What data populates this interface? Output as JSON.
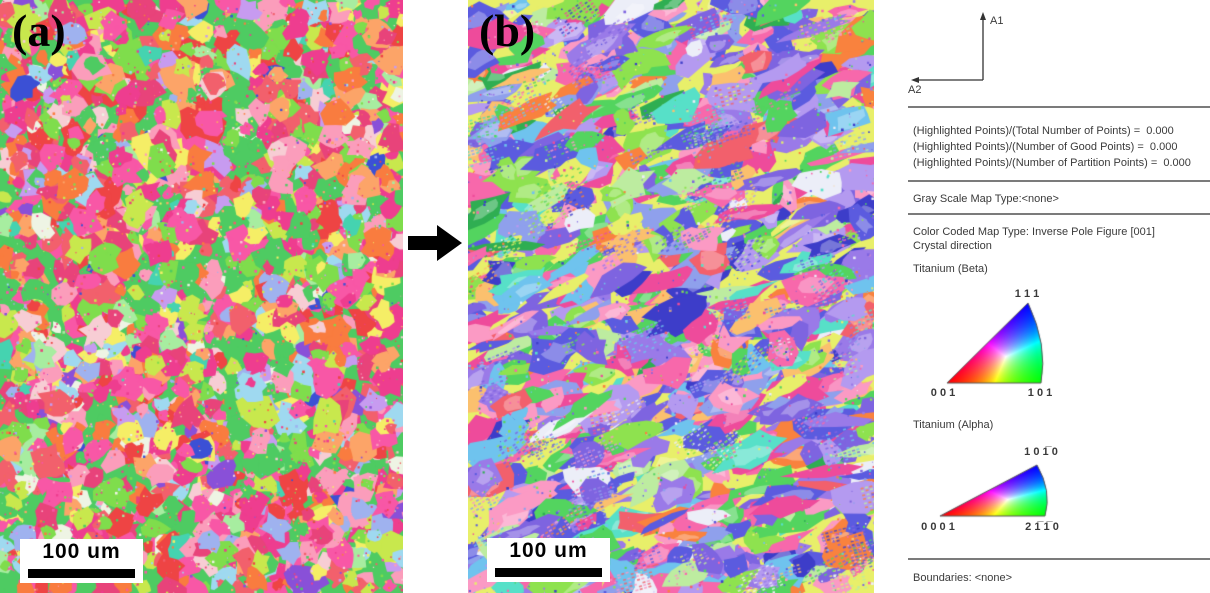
{
  "figure": {
    "panel_a": {
      "label": "(a)",
      "scalebar_text": "100 um"
    },
    "panel_b": {
      "label": "(b)",
      "scalebar_text": "100 um"
    },
    "icons": {
      "transform_arrow": "right-arrow",
      "axes_widget": "a1-a2-axes"
    }
  },
  "legend": {
    "axes": {
      "a1": "A1",
      "a2": "A2"
    },
    "stats": [
      "(Highlighted Points)/(Total Number of Points) =  0.000",
      "(Highlighted Points)/(Number of Good Points) =  0.000",
      "(Highlighted Points)/(Number of Partition Points) =  0.000"
    ],
    "gray_scale": "Gray Scale Map Type:<none>",
    "color_coded": "Color Coded Map Type: Inverse Pole Figure [001]",
    "crystal_direction": "Crystal direction",
    "beta": {
      "title": "Titanium (Beta)",
      "top_label": "1 1 1",
      "bottom_left_label": "0 0 1",
      "bottom_right_label": "1 0 1"
    },
    "alpha": {
      "title": "Titanium (Alpha)",
      "top_label": "1 0 1̅ 0",
      "bottom_left_label": "0 0 0 1",
      "bottom_right_label": "2 1̅ 1̅ 0"
    },
    "boundaries": "Boundaries: <none>",
    "ipf_corner_colors": {
      "red": "#ff0000",
      "green": "#00ff00",
      "blue": "#0000ff"
    }
  },
  "micrographs": {
    "a": {
      "style": "equiaxed",
      "seed": 1337421,
      "palette": [
        {
          "c": "#f857a6",
          "w": 8
        },
        {
          "c": "#ee3d8f",
          "w": 7
        },
        {
          "c": "#e8437a",
          "w": 5
        },
        {
          "c": "#f2606c",
          "w": 5
        },
        {
          "c": "#ee4444",
          "w": 4
        },
        {
          "c": "#f97c3f",
          "w": 6
        },
        {
          "c": "#fca468",
          "w": 4
        },
        {
          "c": "#fb9dbb",
          "w": 6
        },
        {
          "c": "#f7cdd4",
          "w": 3
        },
        {
          "c": "#f5ee66",
          "w": 3
        },
        {
          "c": "#c8e84d",
          "w": 4
        },
        {
          "c": "#7fdd4c",
          "w": 6
        },
        {
          "c": "#4ecb62",
          "w": 5
        },
        {
          "c": "#a7eda0",
          "w": 3
        },
        {
          "c": "#eef4e4",
          "w": 2
        },
        {
          "c": "#9fd9f0",
          "w": 2
        },
        {
          "c": "#9fb2ef",
          "w": 2
        },
        {
          "c": "#c79bf0",
          "w": 2
        },
        {
          "c": "#8950d8",
          "w": 1
        },
        {
          "c": "#3b50d5",
          "w": 1
        },
        {
          "c": "#45d3b0",
          "w": 1
        }
      ]
    },
    "b": {
      "style": "deformed",
      "seed": 987431,
      "palette": [
        {
          "c": "#5b5bdf",
          "w": 6
        },
        {
          "c": "#7e64e0",
          "w": 6
        },
        {
          "c": "#9a7ae8",
          "w": 5
        },
        {
          "c": "#b49af0",
          "w": 4
        },
        {
          "c": "#8fa0ec",
          "w": 4
        },
        {
          "c": "#6fc3ee",
          "w": 3
        },
        {
          "c": "#57e0c8",
          "w": 2
        },
        {
          "c": "#53d45f",
          "w": 5
        },
        {
          "c": "#8ee24f",
          "w": 4
        },
        {
          "c": "#bdeca0",
          "w": 3
        },
        {
          "c": "#f768ab",
          "w": 5
        },
        {
          "c": "#ee4b9b",
          "w": 4
        },
        {
          "c": "#fb9ac4",
          "w": 4
        },
        {
          "c": "#f2606c",
          "w": 2
        },
        {
          "c": "#f9823e",
          "w": 3
        },
        {
          "c": "#fbc06e",
          "w": 2
        },
        {
          "c": "#e8ef6a",
          "w": 2
        },
        {
          "c": "#eceef8",
          "w": 2
        },
        {
          "c": "#3d3dc9",
          "w": 2
        },
        {
          "c": "#2fae52",
          "w": 1
        }
      ]
    }
  }
}
